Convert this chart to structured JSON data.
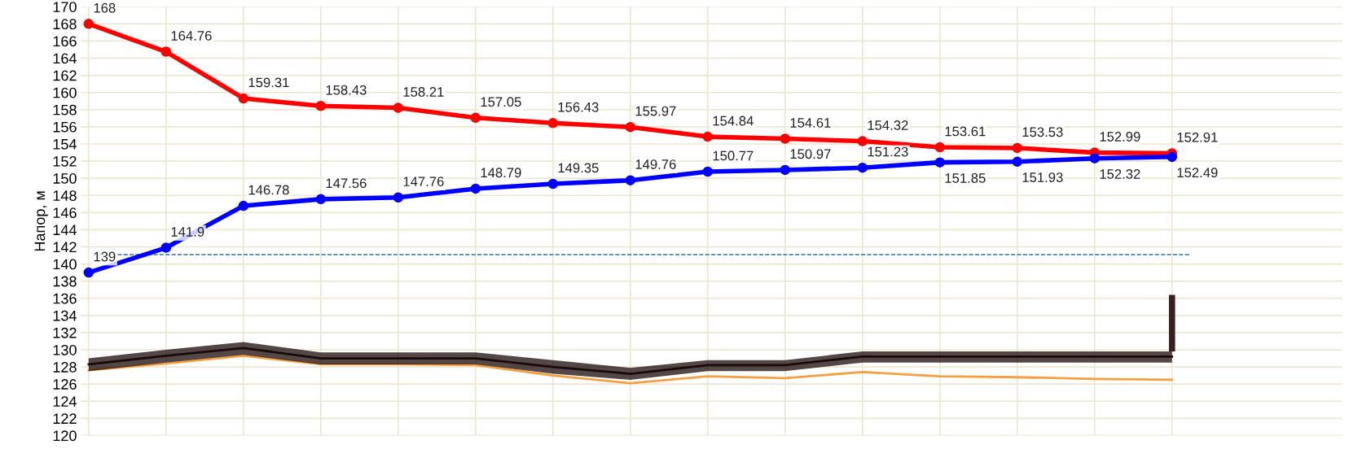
{
  "chart_data": {
    "type": "line",
    "ylabel": "Напор, м",
    "categories": [
      null,
      null,
      null,
      null,
      null,
      null,
      null,
      null,
      null,
      null,
      null,
      null,
      null,
      null,
      null
    ],
    "series": [
      {
        "color": "#ff0000",
        "values": [
          168,
          164.76,
          159.31,
          158.43,
          158.21,
          157.05,
          156.43,
          155.97,
          154.84,
          154.61,
          154.32,
          153.61,
          153.53,
          152.99,
          152.91
        ],
        "value_labels": [
          "168",
          "164.76",
          "159.31",
          "158.43",
          "158.21",
          "157.05",
          "156.43",
          "155.97",
          "154.84",
          "154.61",
          "154.32",
          "153.61",
          "153.53",
          "152.99",
          "152.91"
        ],
        "marker": "circle"
      },
      {
        "color": "#0000ff",
        "values": [
          139,
          141.9,
          146.78,
          147.56,
          147.76,
          148.79,
          149.35,
          149.76,
          150.77,
          150.97,
          151.23,
          151.85,
          151.93,
          152.32,
          152.49
        ],
        "value_labels": [
          "139",
          "141.9",
          "146.78",
          "147.56",
          "147.76",
          "148.79",
          "149.35",
          "149.76",
          "150.77",
          "150.97",
          "151.23",
          "151.85",
          "151.93",
          "152.32",
          "152.49"
        ],
        "marker": "circle"
      },
      {
        "type": "line",
        "color": "#1a0a0a",
        "marker": "none",
        "values": [
          128.3,
          129.3,
          130.2,
          129.0,
          129.0,
          129.0,
          128.0,
          127.2,
          128.2,
          128.2,
          129.2,
          129.2,
          129.2,
          129.2,
          129.2
        ],
        "upper": [
          129.0,
          130.0,
          130.9,
          129.7,
          129.7,
          129.7,
          128.8,
          127.9,
          128.8,
          128.8,
          129.8,
          129.8,
          129.8,
          129.8,
          129.8
        ],
        "lower": [
          127.5,
          128.5,
          129.4,
          128.3,
          128.3,
          128.3,
          127.2,
          126.5,
          127.5,
          127.5,
          128.5,
          128.5,
          128.5,
          128.5,
          128.5
        ]
      },
      {
        "type": "bar",
        "color": "#3b1f1f",
        "values": [
          null,
          null,
          null,
          null,
          null,
          null,
          null,
          null,
          null,
          null,
          null,
          null,
          null,
          null,
          6.6
        ],
        "base": [
          null,
          null,
          null,
          null,
          null,
          null,
          null,
          null,
          null,
          null,
          null,
          null,
          null,
          null,
          129.8
        ]
      },
      {
        "type": "line",
        "color": "#f5a040",
        "values": [
          127.6,
          128.4,
          129.3,
          128.3,
          128.3,
          128.2,
          127.0,
          126.1,
          126.9,
          126.7,
          127.4,
          126.9,
          126.8,
          126.6,
          126.5
        ],
        "marker": "none"
      }
    ],
    "ref_lines": [
      {
        "axis": "y",
        "value": 141.1,
        "color": "#2f6fa8",
        "line_style": "dashed"
      }
    ],
    "ylim": [
      120,
      170
    ],
    "yticks": [
      120,
      122,
      124,
      126,
      128,
      130,
      132,
      134,
      136,
      138,
      140,
      142,
      144,
      146,
      148,
      150,
      152,
      154,
      156,
      158,
      160,
      162,
      164,
      166,
      168,
      170
    ],
    "grid": true,
    "tick_labels": "y"
  }
}
